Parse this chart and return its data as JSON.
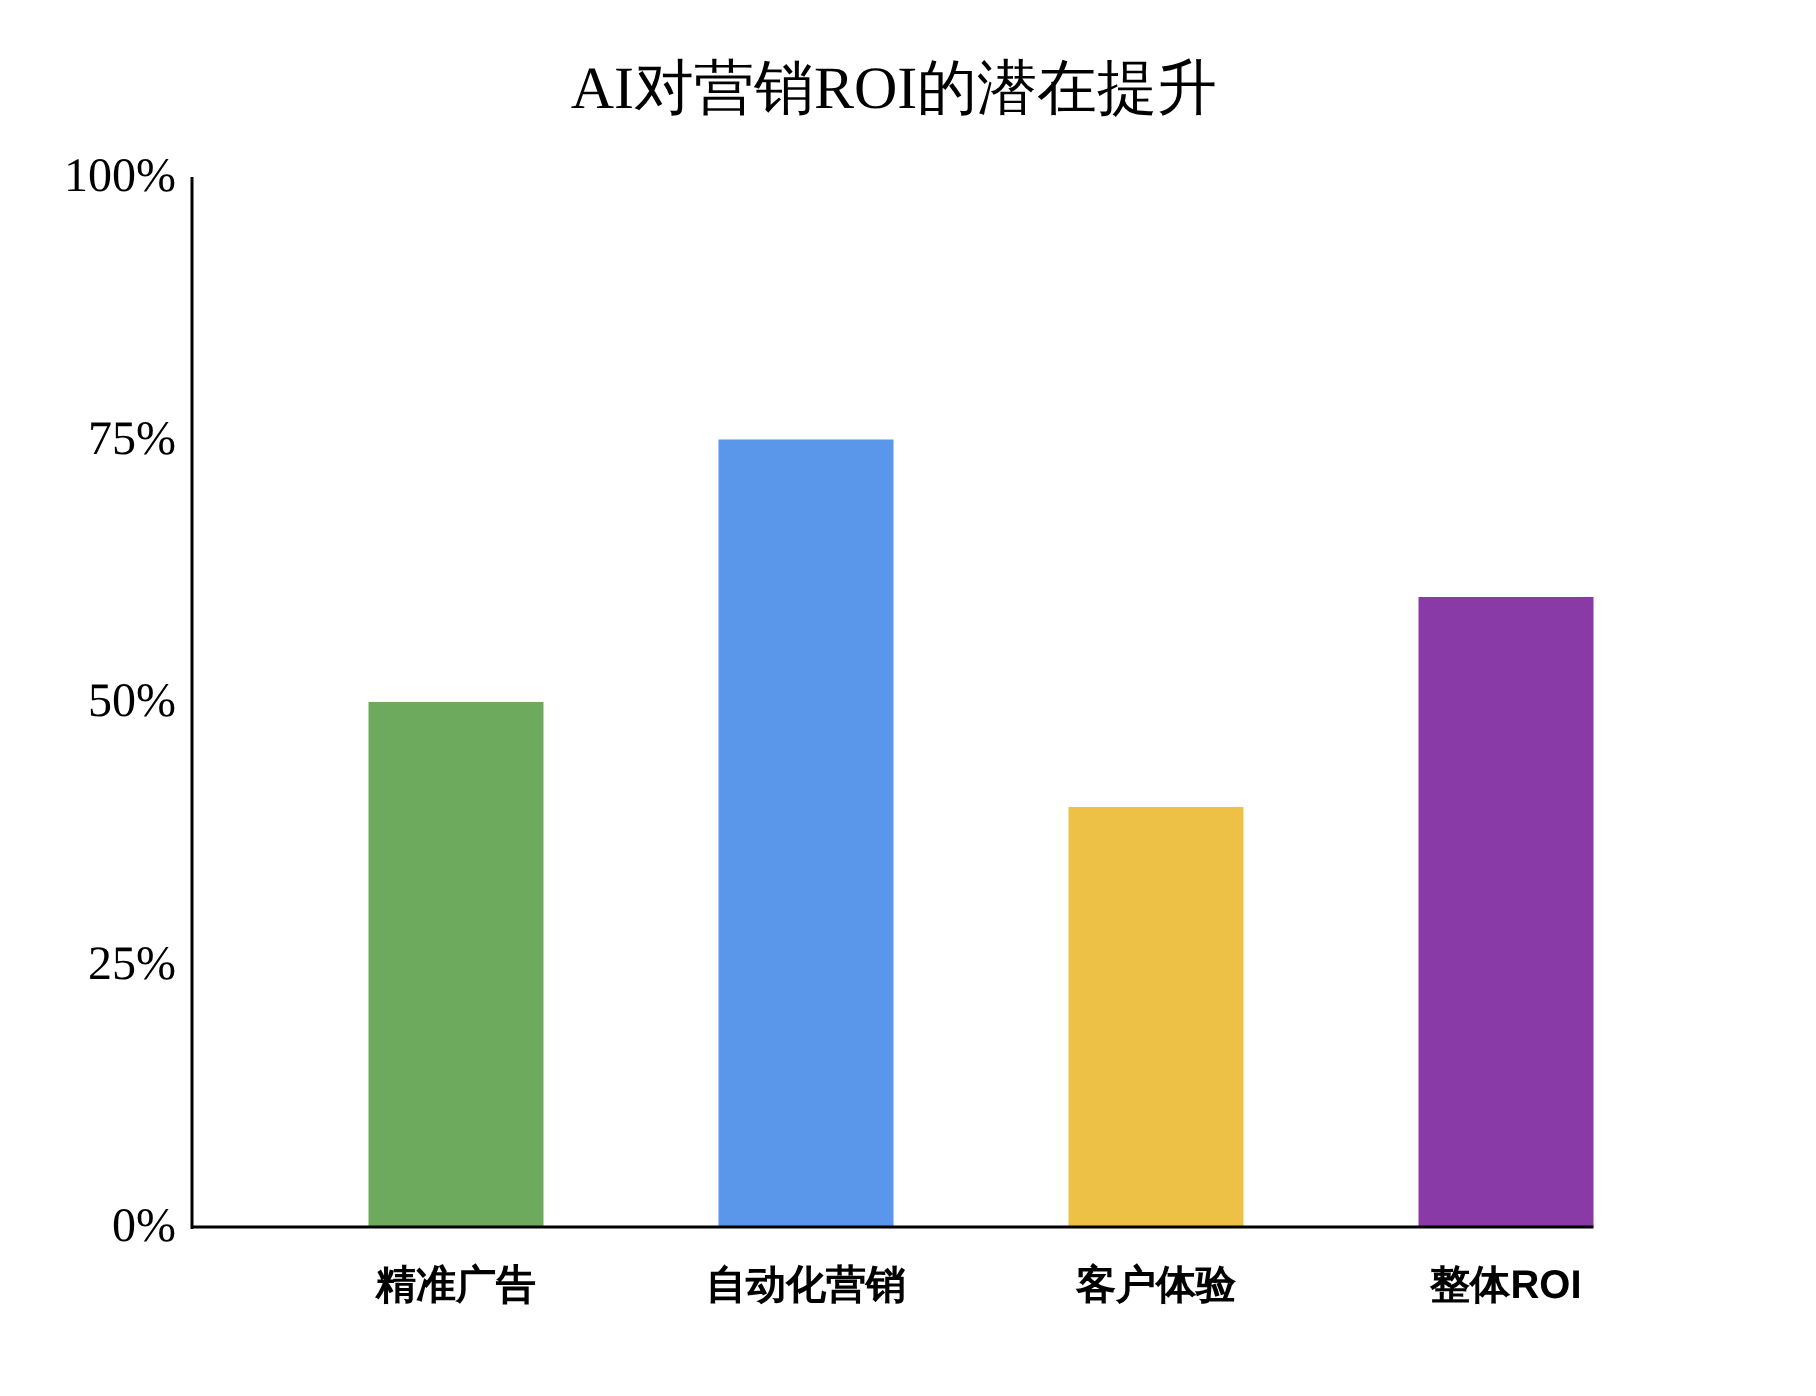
{
  "chart_data": {
    "type": "bar",
    "title": "AI对营销ROI的潜在提升",
    "categories": [
      "精准广告",
      "自动化营销",
      "客户体验",
      "整体ROI"
    ],
    "values": [
      50,
      75,
      40,
      60
    ],
    "colors": [
      "#6eaa5e",
      "#5a96ea",
      "#edc146",
      "#8a3aa6"
    ],
    "ylim": [
      0,
      100
    ],
    "yticks": [
      {
        "value": 0,
        "label": "0%"
      },
      {
        "value": 25,
        "label": "25%"
      },
      {
        "value": 50,
        "label": "50%"
      },
      {
        "value": 75,
        "label": "75%"
      },
      {
        "value": 100,
        "label": "100%"
      }
    ],
    "grid": false
  }
}
